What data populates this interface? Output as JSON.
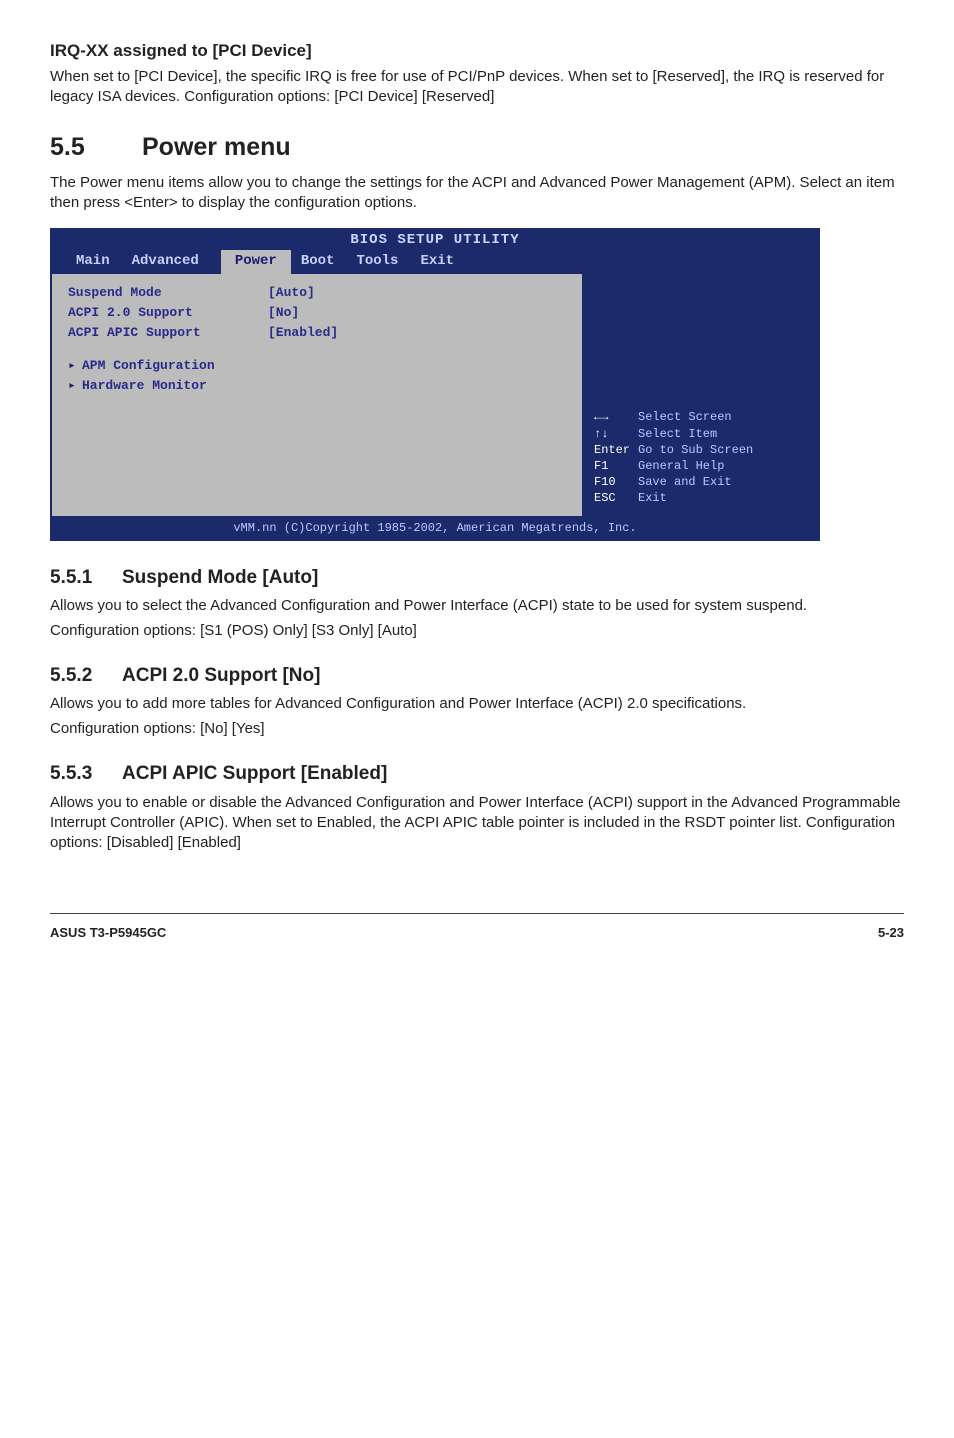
{
  "irq": {
    "heading": "IRQ-XX assigned to [PCI Device]",
    "body": "When set to [PCI Device], the specific IRQ is free for use of PCI/PnP devices. When set to [Reserved], the IRQ is reserved for legacy ISA devices. Configuration options: [PCI Device] [Reserved]"
  },
  "power": {
    "num": "5.5",
    "title": "Power menu",
    "intro": "The Power menu items allow you to change the settings for the ACPI and Advanced Power Management (APM). Select an item then press <Enter> to display the configuration options."
  },
  "bios": {
    "title": "BIOS SETUP UTILITY",
    "tabs": [
      "Main",
      "Advanced",
      "Power",
      "Boot",
      "Tools",
      "Exit"
    ],
    "selected_tab": "Power",
    "rows": [
      {
        "label": "Suspend Mode",
        "val": "[Auto]"
      },
      {
        "label": "ACPI 2.0 Support",
        "val": "[No]"
      },
      {
        "label": "ACPI APIC Support",
        "val": "[Enabled]"
      }
    ],
    "subs": [
      "APM Configuration",
      "Hardware Monitor"
    ],
    "keys": [
      {
        "k": "←→",
        "d": "Select Screen"
      },
      {
        "k": "↑↓",
        "d": "Select Item"
      },
      {
        "k": "Enter",
        "d": "Go to Sub Screen"
      },
      {
        "k": "F1",
        "d": "General Help"
      },
      {
        "k": "F10",
        "d": "Save and Exit"
      },
      {
        "k": "ESC",
        "d": "Exit"
      }
    ],
    "foot": "vMM.nn (C)Copyright 1985-2002, American Megatrends, Inc."
  },
  "s551": {
    "num": "5.5.1",
    "title": "Suspend Mode [Auto]",
    "p1": "Allows you to select the Advanced Configuration and Power Interface (ACPI) state to be used for system suspend.",
    "p2": "Configuration options: [S1 (POS) Only] [S3 Only] [Auto]"
  },
  "s552": {
    "num": "5.5.2",
    "title": "ACPI 2.0 Support [No]",
    "p1": "Allows you to add more tables for Advanced Configuration and Power Interface (ACPI) 2.0 specifications.",
    "p2": "Configuration options: [No] [Yes]"
  },
  "s553": {
    "num": "5.5.3",
    "title": "ACPI APIC Support [Enabled]",
    "p1": "Allows you to enable or disable the Advanced Configuration and Power Interface (ACPI) support in the Advanced Programmable Interrupt Controller (APIC). When set to Enabled, the ACPI APIC table pointer is included in the RSDT pointer list. Configuration options: [Disabled] [Enabled]"
  },
  "footer": {
    "left": "ASUS T3-P5945GC",
    "right": "5-23"
  }
}
